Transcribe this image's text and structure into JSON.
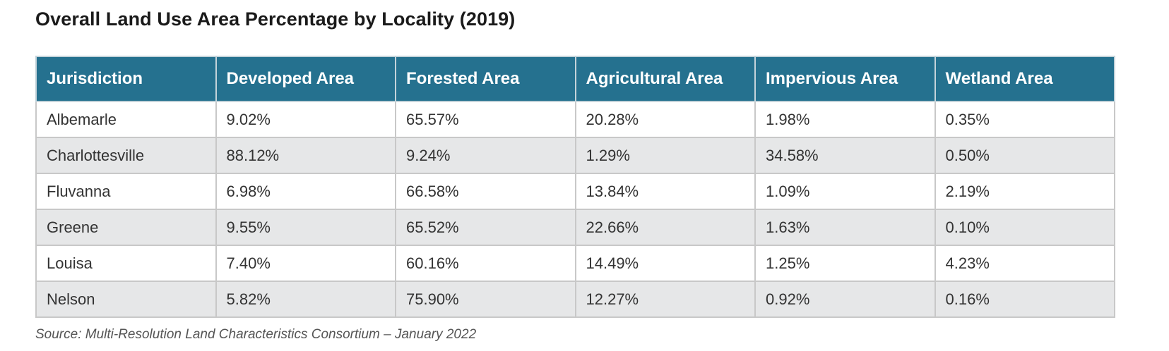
{
  "title": "Overall Land Use Area Percentage by Locality (2019)",
  "table": {
    "headers": [
      "Jurisdiction",
      "Developed Area",
      "Forested Area",
      "Agricultural Area",
      "Impervious Area",
      "Wetland Area"
    ],
    "rows": [
      [
        "Albemarle",
        "9.02%",
        "65.57%",
        "20.28%",
        "1.98%",
        "0.35%"
      ],
      [
        "Charlottesville",
        "88.12%",
        "9.24%",
        "1.29%",
        "34.58%",
        "0.50%"
      ],
      [
        "Fluvanna",
        "6.98%",
        "66.58%",
        "13.84%",
        "1.09%",
        "2.19%"
      ],
      [
        "Greene",
        "9.55%",
        "65.52%",
        "22.66%",
        "1.63%",
        "0.10%"
      ],
      [
        "Louisa",
        "7.40%",
        "60.16%",
        "14.49%",
        "1.25%",
        "4.23%"
      ],
      [
        "Nelson",
        "5.82%",
        "75.90%",
        "12.27%",
        "0.92%",
        "0.16%"
      ]
    ]
  },
  "source": "Source: Multi-Resolution Land Characteristics Consortium – January 2022",
  "colors": {
    "header_background": "#25718f",
    "header_text": "#ffffff",
    "stripe_row": "#e6e7e8",
    "plain_row": "#ffffff"
  }
}
